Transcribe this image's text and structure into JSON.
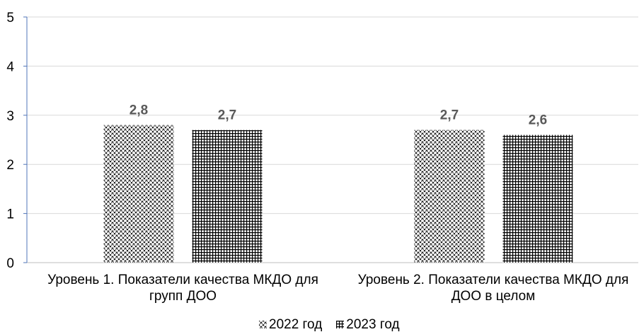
{
  "chart_data": {
    "type": "bar",
    "categories": [
      "Уровень 1. Показатели качества МКДО для групп ДОО",
      "Уровень 2. Показатели качества МКДО для ДОО в целом"
    ],
    "series": [
      {
        "name": "2022 год",
        "values": [
          2.8,
          2.7
        ],
        "labels": [
          "2,8",
          "2,7"
        ],
        "pattern": "diagonal-cross"
      },
      {
        "name": "2023 год",
        "values": [
          2.7,
          2.6
        ],
        "labels": [
          "2,7",
          "2,6"
        ],
        "pattern": "grid"
      }
    ],
    "ylim": [
      0,
      5
    ],
    "yticks": [
      0,
      1,
      2,
      3,
      4,
      5
    ],
    "grid": true,
    "legend": "bottom",
    "colors": {
      "bar_pattern": "#000000",
      "background": "#ffffff",
      "gridline": "#d9d9d9",
      "y_axis": "#4f74b8",
      "x_axis": "#bfbfbf",
      "data_label": "#595959",
      "text": "#000000"
    }
  }
}
